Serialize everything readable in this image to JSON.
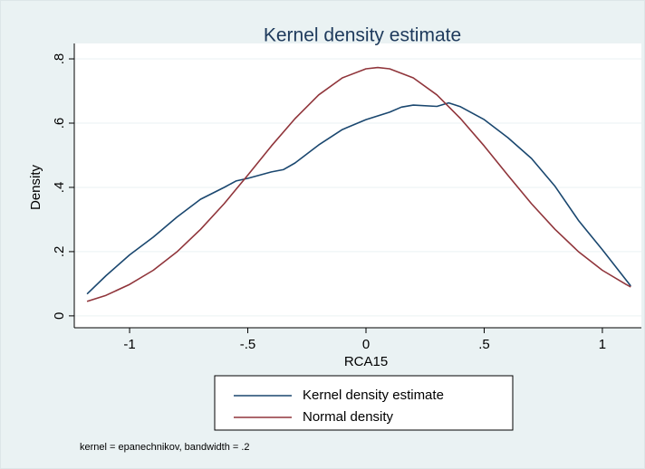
{
  "chart_data": {
    "type": "line",
    "title": "Kernel density estimate",
    "x_label": "RCA15",
    "y_label": "Density",
    "note": "kernel = epanechnikov, bandwidth = .2",
    "xlim": [
      -1.234,
      1.165
    ],
    "ylim": [
      -0.037,
      0.848
    ],
    "xticks": [
      -1,
      {
        "value": -0.5,
        "label": "-.5"
      },
      0,
      {
        "value": 0.5,
        "label": ".5"
      },
      1
    ],
    "yticks": [
      0,
      {
        "value": 0.2,
        "label": ".2"
      },
      {
        "value": 0.4,
        "label": ".4"
      },
      {
        "value": 0.6,
        "label": ".6"
      },
      {
        "value": 0.8,
        "label": ".8"
      }
    ],
    "grid": true,
    "legend": "bottom",
    "series": [
      {
        "name": "Kernel density estimate",
        "color": "#1a476f",
        "x": [
          -1.18,
          -1.1,
          -1.0,
          -0.9,
          -0.8,
          -0.7,
          -0.6,
          -0.55,
          -0.5,
          -0.4,
          -0.35,
          -0.3,
          -0.2,
          -0.1,
          0,
          0.1,
          0.15,
          0.2,
          0.3,
          0.35,
          0.4,
          0.5,
          0.6,
          0.7,
          0.8,
          0.9,
          1.0,
          1.12
        ],
        "values": [
          0.068,
          0.125,
          0.19,
          0.245,
          0.307,
          0.363,
          0.4,
          0.42,
          0.428,
          0.448,
          0.455,
          0.476,
          0.532,
          0.58,
          0.611,
          0.634,
          0.65,
          0.656,
          0.652,
          0.663,
          0.651,
          0.611,
          0.555,
          0.49,
          0.403,
          0.296,
          0.206,
          0.093
        ]
      },
      {
        "name": "Normal density",
        "color": "#90353b",
        "x": [
          -1.18,
          -1.1,
          -1.0,
          -0.9,
          -0.8,
          -0.7,
          -0.6,
          -0.5,
          -0.4,
          -0.3,
          -0.2,
          -0.1,
          0,
          0.05,
          0.1,
          0.2,
          0.3,
          0.4,
          0.5,
          0.6,
          0.7,
          0.8,
          0.9,
          1.0,
          1.1,
          1.12
        ],
        "values": [
          0.045,
          0.064,
          0.098,
          0.142,
          0.199,
          0.269,
          0.349,
          0.438,
          0.529,
          0.614,
          0.688,
          0.741,
          0.769,
          0.773,
          0.769,
          0.741,
          0.688,
          0.614,
          0.529,
          0.438,
          0.349,
          0.269,
          0.199,
          0.142,
          0.098,
          0.09
        ]
      }
    ]
  }
}
